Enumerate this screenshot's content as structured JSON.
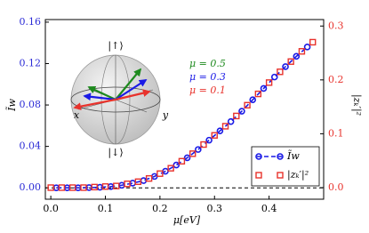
{
  "chart_data": {
    "type": "line",
    "xlabel": "μ[eV]",
    "ylabel": "Ĩw",
    "y2label": "|zₖ′|²",
    "xlim": [
      -0.01,
      0.5
    ],
    "ylim": [
      -0.011,
      0.1625
    ],
    "y2lim": [
      -0.0215,
      0.312
    ],
    "xticks": [
      {
        "value": 0,
        "label": "0.0"
      },
      0.1,
      0.2,
      0.3,
      0.4
    ],
    "yticks": [
      {
        "value": 0,
        "label": "0.00"
      },
      {
        "value": 0.04,
        "label": "0.04"
      },
      {
        "value": 0.08,
        "label": "0.08"
      },
      {
        "value": 0.12,
        "label": "0.12"
      },
      {
        "value": 0.16,
        "label": "0.16"
      }
    ],
    "y2ticks": [
      {
        "value": 0,
        "label": "0.0"
      },
      0.1,
      0.2,
      0.3
    ],
    "yaxis_color": "#2b2bd6",
    "y2axis_color": "#e8322c",
    "reference_line": 0,
    "legend": "lower right",
    "series": [
      {
        "name": "Ĩw",
        "color": "#1a1ae6",
        "marker": "circle",
        "linestyle": "dashed",
        "x": [
          0.01,
          0.03,
          0.05,
          0.07,
          0.09,
          0.11,
          0.13,
          0.15,
          0.17,
          0.19,
          0.21,
          0.23,
          0.25,
          0.27,
          0.29,
          0.31,
          0.33,
          0.35,
          0.37,
          0.39,
          0.41,
          0.43,
          0.45,
          0.47
        ],
        "values": [
          0,
          0,
          0,
          0.0002,
          0.0005,
          0.0012,
          0.0025,
          0.0045,
          0.007,
          0.011,
          0.016,
          0.022,
          0.029,
          0.037,
          0.046,
          0.055,
          0.064,
          0.074,
          0.085,
          0.096,
          0.107,
          0.117,
          0.127,
          0.136
        ]
      },
      {
        "name": "|zₖ′|²",
        "color": "#e8322c",
        "marker": "square",
        "linestyle": "none",
        "axis": "y2",
        "x": [
          0,
          0.02,
          0.04,
          0.06,
          0.08,
          0.1,
          0.12,
          0.14,
          0.16,
          0.18,
          0.2,
          0.22,
          0.24,
          0.26,
          0.28,
          0.3,
          0.32,
          0.34,
          0.36,
          0.38,
          0.4,
          0.42,
          0.44,
          0.46,
          0.48
        ],
        "values": [
          0,
          0,
          0,
          0,
          0.001,
          0.002,
          0.003,
          0.007,
          0.011,
          0.017,
          0.026,
          0.036,
          0.049,
          0.063,
          0.08,
          0.097,
          0.114,
          0.133,
          0.153,
          0.174,
          0.195,
          0.215,
          0.234,
          0.253,
          0.27
        ]
      }
    ],
    "inset": {
      "labels": [
        "|↑⟩",
        "|↓⟩",
        "x",
        "y"
      ],
      "mu_labels": [
        {
          "text": "μ = 0.5",
          "color": "#1e8a1e"
        },
        {
          "text": "μ = 0.3",
          "color": "#1a1ae6"
        },
        {
          "text": "μ = 0.1",
          "color": "#e8322c"
        }
      ]
    }
  }
}
